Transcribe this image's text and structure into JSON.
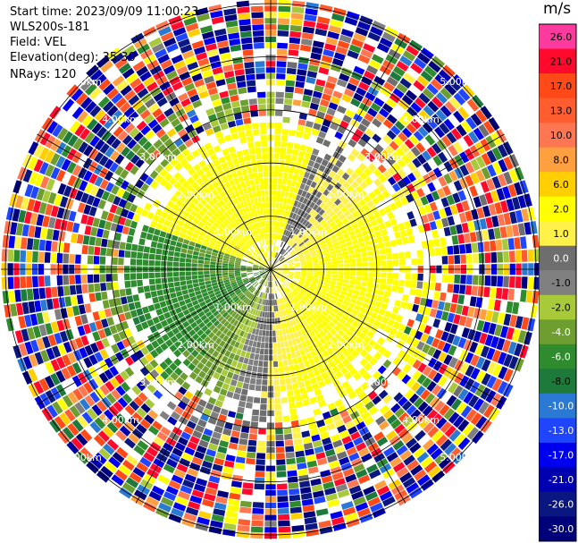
{
  "info": {
    "start_time": "Start time: 2023/09/09 11:00:23",
    "station": "WLS200s-181",
    "field": "Field: VEL",
    "elevation": "Elevation(deg): 35.30",
    "nrays": "NRays: 120"
  },
  "chart_data": {
    "type": "ppi-polar",
    "field": "VEL",
    "n_rays": 120,
    "range_rings_km": [
      1.0,
      2.0,
      3.0,
      4.0,
      5.0
    ],
    "ring_labels": [
      "1.00km",
      "2.00km",
      "3.00km",
      "4.00km",
      "5.00km"
    ],
    "colorbar": {
      "unit": "m/s",
      "ticks": [
        "26.0",
        "21.0",
        "17.0",
        "13.0",
        "10.0",
        "8.0",
        "6.0",
        "2.0",
        "1.0",
        "0.0",
        "-1.0",
        "-2.0",
        "-4.0",
        "-6.0",
        "-8.0",
        "-10.0",
        "-13.0",
        "-17.0",
        "-21.0",
        "-26.0",
        "-30.0"
      ],
      "colors": [
        "#ff3a9e",
        "#ff0a2c",
        "#ff4a17",
        "#ff5c30",
        "#ff7752",
        "#ffa040",
        "#ffcf00",
        "#ffff00",
        "#fff04a",
        "#6e6e6e",
        "#808080",
        "#a8c93a",
        "#6e9e2f",
        "#2e8b2e",
        "#1e7a3a",
        "#2a7ad4",
        "#1f45ff",
        "#0000ee",
        "#0000b0",
        "#0a1780",
        "#00007a"
      ]
    }
  }
}
